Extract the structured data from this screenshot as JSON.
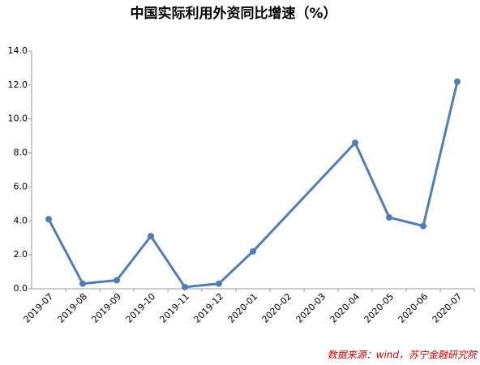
{
  "chart_data": {
    "type": "line",
    "title": "中国实际利用外资同比增速（%）",
    "source": "数据来源：wind，苏宁金融研究院",
    "categories": [
      "2019-07",
      "2019-08",
      "2019-09",
      "2019-10",
      "2019-11",
      "2019-12",
      "2020-01",
      "2020-02",
      "2020-03",
      "2020-04",
      "2020-05",
      "2020-06",
      "2020-07"
    ],
    "series": [
      {
        "name": "中国实际利用外资同比增速",
        "color": "#4f7db8",
        "values": [
          4.1,
          0.3,
          0.5,
          3.1,
          0.1,
          0.3,
          2.2,
          null,
          null,
          8.6,
          4.2,
          3.7,
          12.2
        ]
      }
    ],
    "connect_gaps": true,
    "ylim": [
      0,
      14
    ],
    "yticks": [
      {
        "value": 0,
        "label": "0.0"
      },
      {
        "value": 2,
        "label": "2.0"
      },
      {
        "value": 4,
        "label": "4.0"
      },
      {
        "value": 6,
        "label": "6.0"
      },
      {
        "value": 8,
        "label": "8.0"
      },
      {
        "value": 10,
        "label": "10.0"
      },
      {
        "value": 12,
        "label": "12.0"
      },
      {
        "value": 14,
        "label": "14.0"
      }
    ],
    "grid": false
  }
}
